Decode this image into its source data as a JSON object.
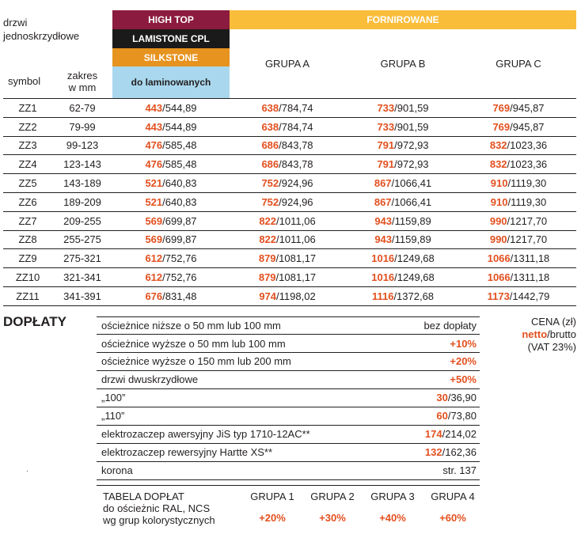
{
  "header": {
    "door_label": "drzwi\njednoskrzydłowe",
    "symbol_label": "symbol",
    "range_label": "zakres\nw mm",
    "band_high_top": "HIGH TOP",
    "band_lamistone": "LAMISTONE CPL",
    "band_silkstone": "SILKSTONE",
    "band_laminated": "do laminowanych",
    "veneered": "FORNIROWANE",
    "group_a": "GRUPA A",
    "group_b": "GRUPA B",
    "group_c": "GRUPA C"
  },
  "colors": {
    "high_top": "#8b1b3f",
    "lamistone": "#1a1a1a",
    "silkstone": "#e6931f",
    "laminated": "#a9d8ee",
    "veneered": "#f9bd3a",
    "accent": "#e2501f"
  },
  "rows": [
    {
      "symbol": "ZZ1",
      "range": "62-79",
      "c1": [
        "443",
        "/544,89"
      ],
      "ga": [
        "638",
        "/784,74"
      ],
      "gb": [
        "733",
        "/901,59"
      ],
      "gc": [
        "769",
        "/945,87"
      ]
    },
    {
      "symbol": "ZZ2",
      "range": "79-99",
      "c1": [
        "443",
        "/544,89"
      ],
      "ga": [
        "638",
        "/784,74"
      ],
      "gb": [
        "733",
        "/901,59"
      ],
      "gc": [
        "769",
        "/945,87"
      ]
    },
    {
      "symbol": "ZZ3",
      "range": "99-123",
      "c1": [
        "476",
        "/585,48"
      ],
      "ga": [
        "686",
        "/843,78"
      ],
      "gb": [
        "791",
        "/972,93"
      ],
      "gc": [
        "832",
        "/1023,36"
      ]
    },
    {
      "symbol": "ZZ4",
      "range": "123-143",
      "c1": [
        "476",
        "/585,48"
      ],
      "ga": [
        "686",
        "/843,78"
      ],
      "gb": [
        "791",
        "/972,93"
      ],
      "gc": [
        "832",
        "/1023,36"
      ]
    },
    {
      "symbol": "ZZ5",
      "range": "143-189",
      "c1": [
        "521",
        "/640,83"
      ],
      "ga": [
        "752",
        "/924,96"
      ],
      "gb": [
        "867",
        "/1066,41"
      ],
      "gc": [
        "910",
        "/1119,30"
      ]
    },
    {
      "symbol": "ZZ6",
      "range": "189-209",
      "c1": [
        "521",
        "/640,83"
      ],
      "ga": [
        "752",
        "/924,96"
      ],
      "gb": [
        "867",
        "/1066,41"
      ],
      "gc": [
        "910",
        "/1119,30"
      ]
    },
    {
      "symbol": "ZZ7",
      "range": "209-255",
      "c1": [
        "569",
        "/699,87"
      ],
      "ga": [
        "822",
        "/1011,06"
      ],
      "gb": [
        "943",
        "/1159,89"
      ],
      "gc": [
        "990",
        "/1217,70"
      ]
    },
    {
      "symbol": "ZZ8",
      "range": "255-275",
      "c1": [
        "569",
        "/699,87"
      ],
      "ga": [
        "822",
        "/1011,06"
      ],
      "gb": [
        "943",
        "/1159,89"
      ],
      "gc": [
        "990",
        "/1217,70"
      ]
    },
    {
      "symbol": "ZZ9",
      "range": "275-321",
      "c1": [
        "612",
        "/752,76"
      ],
      "ga": [
        "879",
        "/1081,17"
      ],
      "gb": [
        "1016",
        "/1249,68"
      ],
      "gc": [
        "1066",
        "/1311,18"
      ]
    },
    {
      "symbol": "ZZ10",
      "range": "321-341",
      "c1": [
        "612",
        "/752,76"
      ],
      "ga": [
        "879",
        "/1081,17"
      ],
      "gb": [
        "1016",
        "/1249,68"
      ],
      "gc": [
        "1066",
        "/1311,18"
      ]
    },
    {
      "symbol": "ZZ11",
      "range": "341-391",
      "c1": [
        "676",
        "/831,48"
      ],
      "ga": [
        "974",
        "/1198,02"
      ],
      "gb": [
        "1116",
        "/1372,68"
      ],
      "gc": [
        "1173",
        "/1442,79"
      ]
    }
  ],
  "surcharges": {
    "title": "DOPŁATY",
    "items": [
      {
        "label": "ościeżnice niższe o 50 mm lub 100 mm",
        "net": "",
        "value": "bez dopłaty"
      },
      {
        "label": "ościeżnice wyższe o 50 mm lub 100 mm",
        "net": "+10%",
        "value": ""
      },
      {
        "label": "ościeżnice wyższe o 150 mm lub 200 mm",
        "net": "+20%",
        "value": ""
      },
      {
        "label": "drzwi dwuskrzydłowe",
        "net": "+50%",
        "value": ""
      },
      {
        "label": "„100”",
        "net": "30",
        "value": "/36,90"
      },
      {
        "label": "„110”",
        "net": "60",
        "value": "/73,80"
      },
      {
        "label": "elektrozaczep awersyjny JiS typ 1710-12AC**",
        "net": "174",
        "value": "/214,02"
      },
      {
        "label": "elektrozaczep rewersyjny Hartte XS**",
        "net": "132",
        "value": "/162,36"
      },
      {
        "label": "korona",
        "net": "",
        "value": "str. 137"
      }
    ]
  },
  "price_note": {
    "line1": "CENA (zł)",
    "netto": "netto",
    "brutto": "/brutto",
    "vat": "(VAT 23%)"
  },
  "ral_table": {
    "label": "TABELA DOPŁAT\ndo ościeżnic RAL, NCS\nwg grup kolorystycznych",
    "groups": [
      {
        "name": "GRUPA 1",
        "value": "+20%"
      },
      {
        "name": "GRUPA 2",
        "value": "+30%"
      },
      {
        "name": "GRUPA 3",
        "value": "+40%"
      },
      {
        "name": "GRUPA 4",
        "value": "+60%"
      }
    ]
  },
  "footnote_mark": "."
}
